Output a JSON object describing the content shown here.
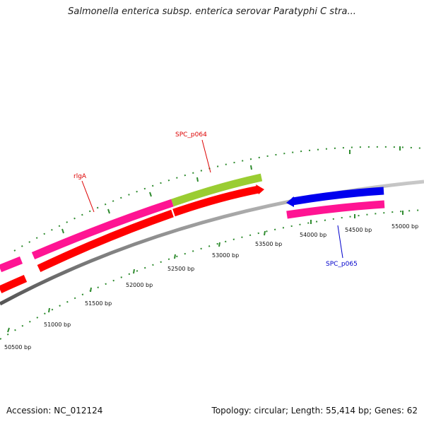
{
  "title": "Salmonella enterica subsp. enterica serovar Paratyphi C stra...",
  "footer": {
    "accession": "Accession: NC_012124",
    "summary": "Topology: circular; Length: 55,414 bp; Genes: 62"
  },
  "colors": {
    "backbone": "#8c8c8c",
    "tick": "#2e8b2e",
    "forward_gene": "#ff1493",
    "forward_gene_alt": "#9acd32",
    "reverse_gene": "#ff0000",
    "highlight_gene": "#0000ee",
    "label_red": "#dd0000",
    "label_blue": "#0000cc"
  },
  "ticks": [
    {
      "label": "50500 bp"
    },
    {
      "label": "51000 bp"
    },
    {
      "label": "51500 bp"
    },
    {
      "label": "52000 bp"
    },
    {
      "label": "52500 bp"
    },
    {
      "label": "53000 bp"
    },
    {
      "label": "53500 bp"
    },
    {
      "label": "54000 bp"
    },
    {
      "label": "54500 bp"
    },
    {
      "label": "55000 bp"
    }
  ],
  "gene_labels": [
    {
      "name": "rlgA",
      "color": "#dd0000"
    },
    {
      "name": "SPC_p064",
      "color": "#dd0000"
    },
    {
      "name": "SPC_p065",
      "color": "#0000cc"
    }
  ]
}
